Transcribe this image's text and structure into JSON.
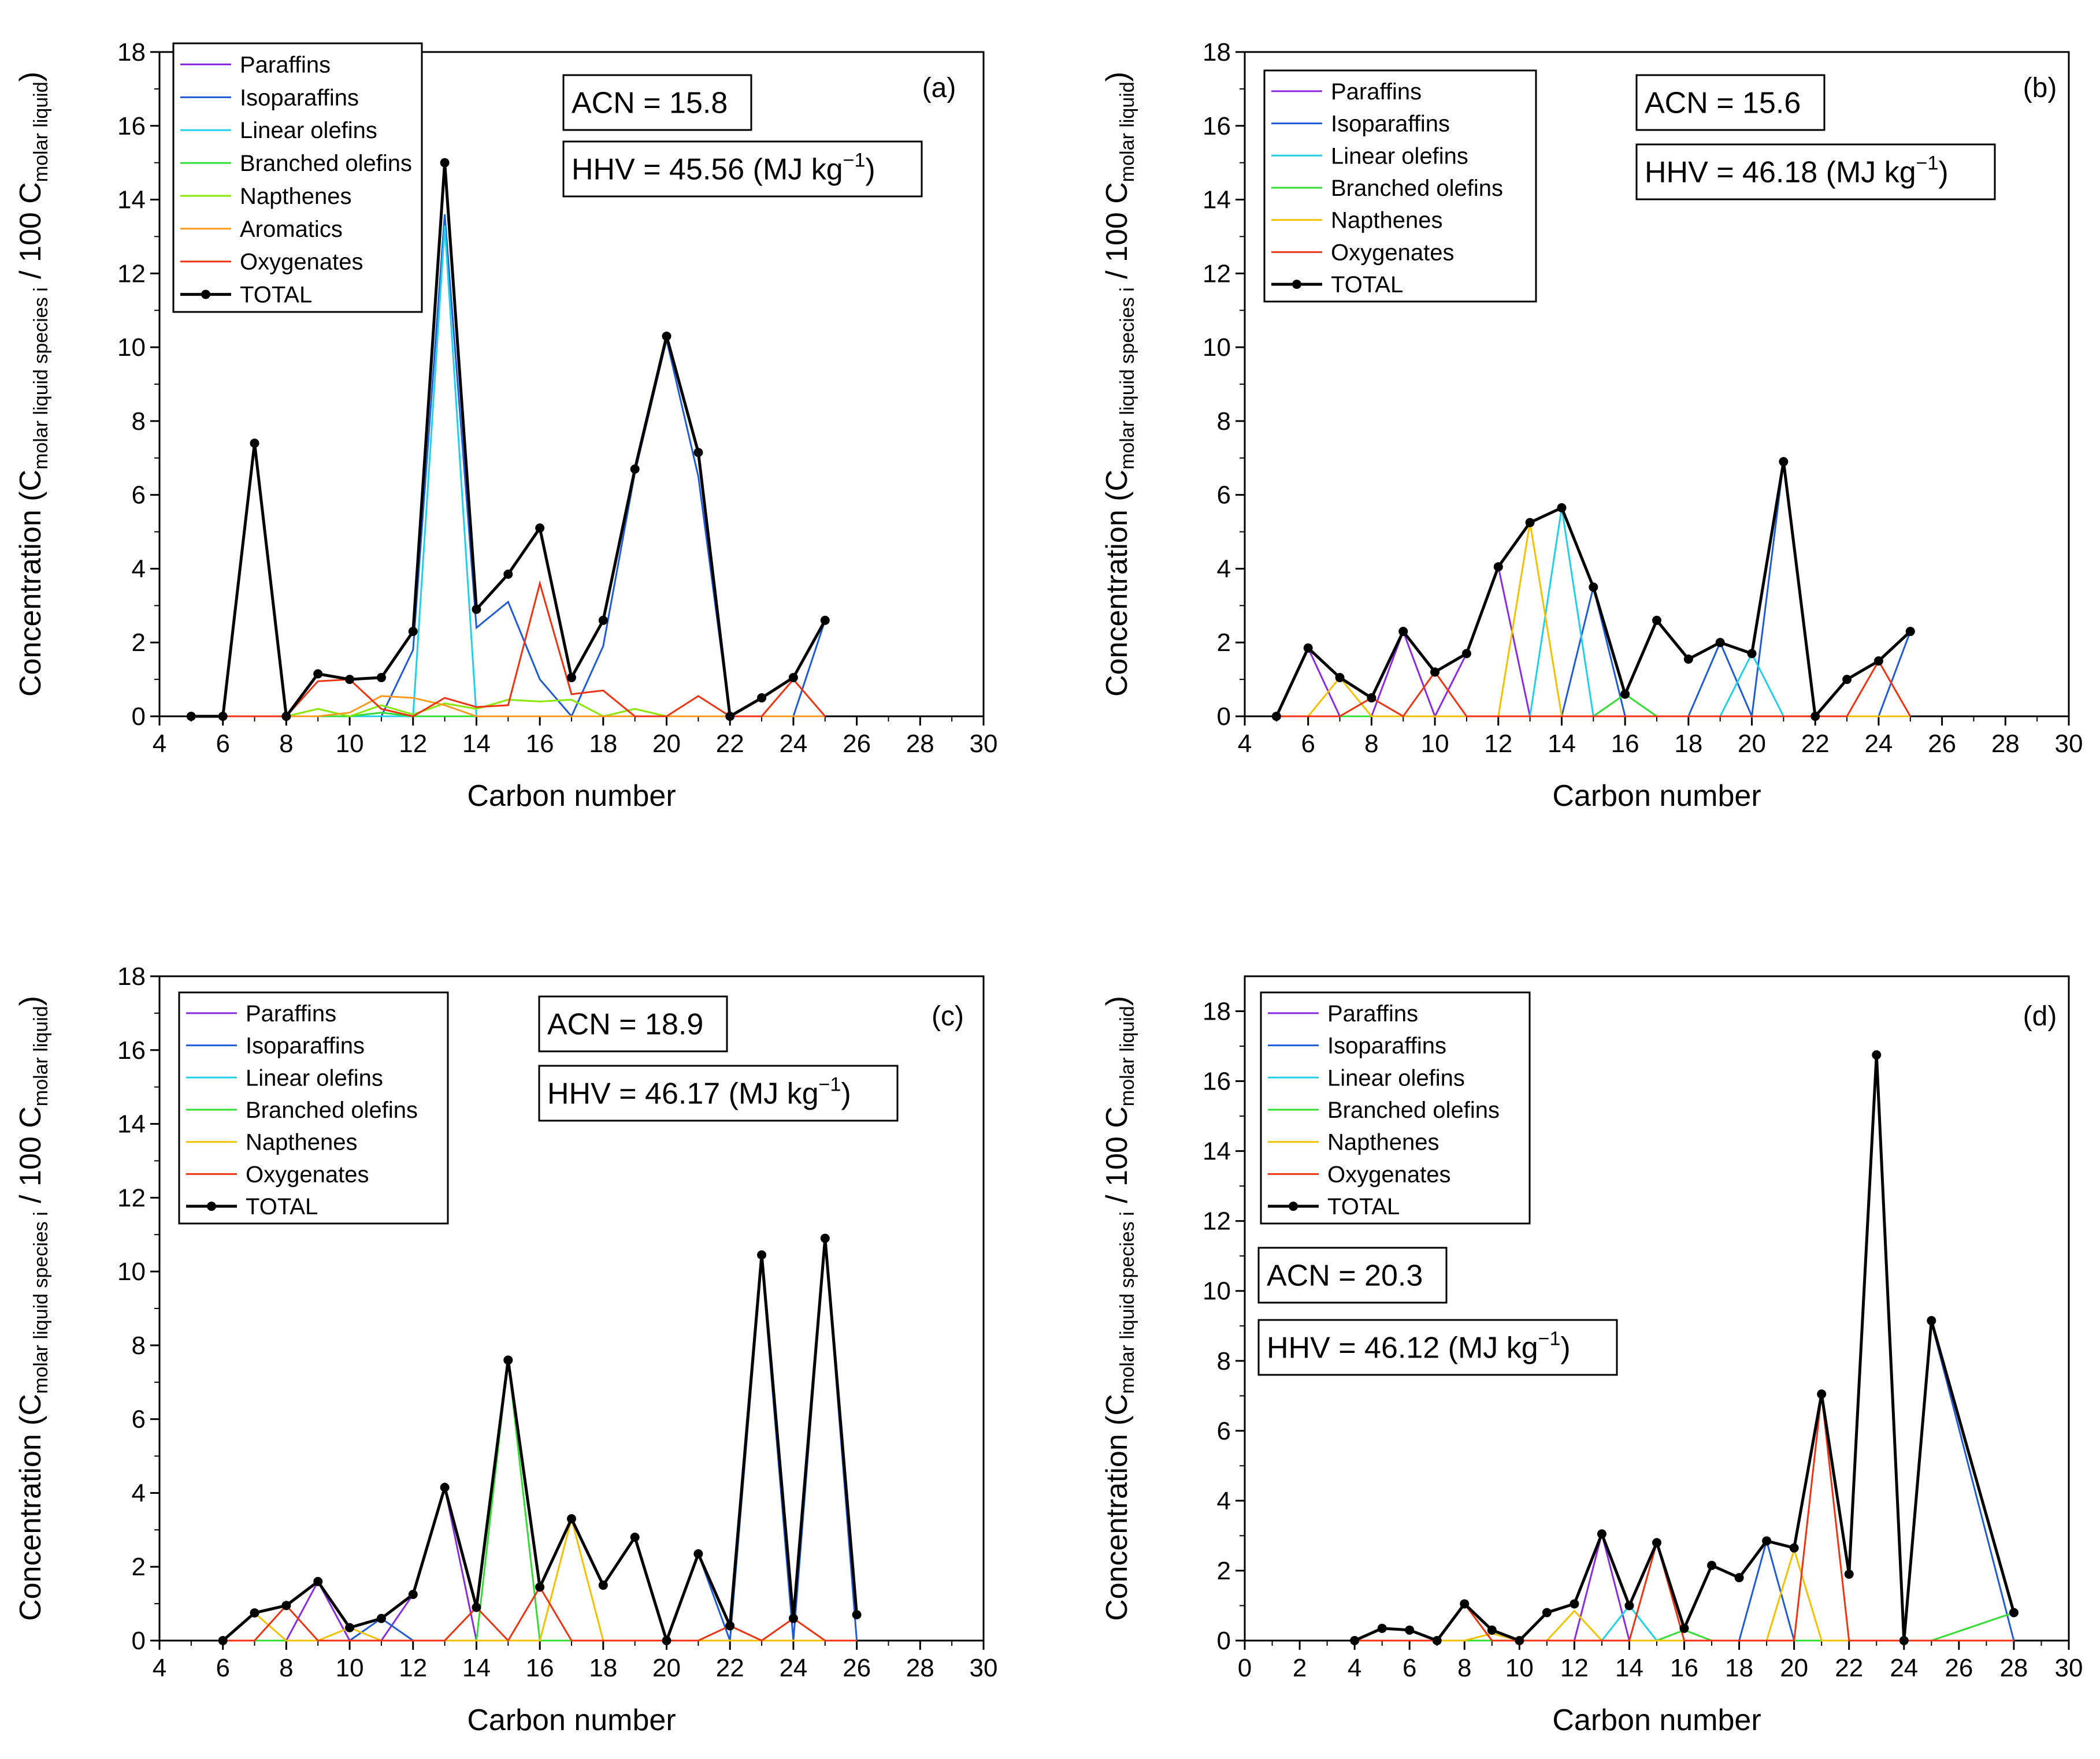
{
  "colors": {
    "Paraffins": "#8a2be2",
    "Isoparaffins": "#1f5bd6",
    "Linear olefins": "#1fd0e8",
    "Branched olefins": "#33dd33",
    "Napthenes": "#f2c200",
    "Napthenes_a": "#88e800",
    "Aromatics": "#ff9a1f",
    "Oxygenates": "#ee3311",
    "TOTAL": "#000000"
  },
  "chart_data": [
    {
      "type": "line",
      "panel": "(a)",
      "xlabel": "Carbon number",
      "ylabel_main": "Concentration (C",
      "ylabel_sub1": "molar liquid species i",
      "ylabel_mid": " / 100 C",
      "ylabel_sub2": "molar liquid",
      "ylabel_end": ")",
      "xlim": [
        4,
        30
      ],
      "ylim": [
        0,
        18
      ],
      "xticks": [
        4,
        6,
        8,
        10,
        12,
        14,
        16,
        18,
        20,
        22,
        24,
        26,
        28,
        30
      ],
      "yticks": [
        0,
        2,
        4,
        6,
        8,
        10,
        12,
        14,
        16,
        18
      ],
      "legend": [
        "Paraffins",
        "Isoparaffins",
        "Linear olefins",
        "Branched olefins",
        "Napthenes",
        "Aromatics",
        "Oxygenates",
        "TOTAL"
      ],
      "acn": "ACN = 15.8",
      "hhv_prefix": "HHV = 45.56 (MJ kg",
      "hhv_sup": "−1",
      "hhv_suffix": ")",
      "x": [
        5,
        6,
        7,
        8,
        9,
        10,
        11,
        12,
        13,
        14,
        15,
        16,
        17,
        18,
        19,
        20,
        21,
        22,
        23,
        24,
        25
      ],
      "series": [
        {
          "name": "Paraffins",
          "values": [
            0,
            0,
            0,
            0,
            0,
            0,
            0,
            0,
            0,
            0,
            0,
            0,
            0,
            0,
            0,
            0,
            0,
            0,
            0,
            0,
            0
          ]
        },
        {
          "name": "Isoparaffins",
          "values": [
            0,
            0,
            0,
            0,
            0,
            0,
            0,
            1.8,
            13.6,
            2.4,
            3.1,
            1.0,
            0,
            1.9,
            6.6,
            10.2,
            6.5,
            0,
            0,
            0,
            2.6
          ]
        },
        {
          "name": "Linear olefins",
          "values": [
            0,
            0,
            0,
            0,
            0,
            0,
            0,
            0,
            13.3,
            0,
            0,
            0,
            0,
            0,
            0,
            0,
            0,
            0,
            0,
            0,
            0
          ]
        },
        {
          "name": "Branched olefins",
          "values": [
            0,
            0,
            0,
            0,
            0,
            0,
            0.1,
            0,
            0,
            0,
            0,
            0,
            0,
            0,
            0,
            0,
            0,
            0,
            0,
            0,
            0
          ]
        },
        {
          "name": "Napthenes",
          "values": [
            0,
            0,
            0,
            0,
            0.2,
            0,
            0.3,
            0.05,
            0.35,
            0.2,
            0.45,
            0.4,
            0.45,
            0,
            0.2,
            0,
            0,
            0,
            0,
            0,
            0
          ]
        },
        {
          "name": "Aromatics",
          "values": [
            0,
            0,
            0,
            0,
            0,
            0.1,
            0.55,
            0.5,
            0.3,
            0,
            0,
            0,
            0,
            0,
            0,
            0,
            0,
            0,
            0,
            0,
            0
          ]
        },
        {
          "name": "Oxygenates",
          "values": [
            0,
            0,
            0,
            0,
            0.95,
            1.0,
            0.2,
            0,
            0.5,
            0.25,
            0.3,
            3.6,
            0.6,
            0.7,
            0,
            0,
            0.55,
            0,
            0,
            1.0,
            0
          ]
        },
        {
          "name": "TOTAL",
          "values": [
            0,
            0,
            7.4,
            0,
            1.15,
            1.0,
            1.05,
            2.3,
            15.0,
            2.9,
            3.85,
            5.1,
            1.05,
            2.6,
            6.7,
            10.3,
            7.15,
            0,
            0.5,
            1.05,
            2.6
          ]
        }
      ]
    },
    {
      "type": "line",
      "panel": "(b)",
      "xlabel": "Carbon number",
      "ylabel_main": "Concentration (C",
      "ylabel_sub1": "molar liquid species i",
      "ylabel_mid": " / 100 C",
      "ylabel_sub2": "molar liquid",
      "ylabel_end": ")",
      "xlim": [
        4,
        30
      ],
      "ylim": [
        0,
        18
      ],
      "xticks": [
        4,
        6,
        8,
        10,
        12,
        14,
        16,
        18,
        20,
        22,
        24,
        26,
        28,
        30
      ],
      "yticks": [
        0,
        2,
        4,
        6,
        8,
        10,
        12,
        14,
        16,
        18
      ],
      "legend": [
        "Paraffins",
        "Isoparaffins",
        "Linear olefins",
        "Branched olefins",
        "Napthenes",
        "Oxygenates",
        "TOTAL"
      ],
      "acn": "ACN = 15.6",
      "hhv_prefix": "HHV = 46.18 (MJ kg",
      "hhv_sup": "−1",
      "hhv_suffix": ")",
      "x": [
        5,
        6,
        7,
        8,
        9,
        10,
        11,
        12,
        13,
        14,
        15,
        16,
        17,
        18,
        19,
        20,
        21,
        22,
        23,
        24,
        25
      ],
      "series": [
        {
          "name": "Paraffins",
          "values": [
            0,
            1.85,
            0,
            0,
            2.3,
            0,
            1.7,
            4.05,
            0,
            0,
            0,
            0,
            0,
            0,
            0,
            0,
            0,
            0,
            0,
            0,
            0
          ]
        },
        {
          "name": "Isoparaffins",
          "values": [
            0,
            0,
            0,
            0,
            0,
            0,
            0,
            0,
            0,
            0,
            3.5,
            0,
            0,
            0,
            2.0,
            0,
            6.9,
            0,
            0,
            0,
            2.3
          ]
        },
        {
          "name": "Linear olefins",
          "values": [
            0,
            0,
            0,
            0,
            0,
            0,
            0,
            0,
            0,
            5.65,
            0,
            0,
            0,
            0,
            0,
            1.7,
            0,
            0,
            0,
            0,
            0
          ]
        },
        {
          "name": "Branched olefins",
          "values": [
            0,
            0,
            0,
            0,
            0,
            0,
            0,
            0,
            0,
            0,
            0,
            0.6,
            0,
            0,
            0,
            0,
            0,
            0,
            0,
            0,
            0
          ]
        },
        {
          "name": "Napthenes",
          "values": [
            0,
            0,
            1.05,
            0,
            0,
            0,
            0,
            0,
            5.25,
            0,
            0,
            0,
            0,
            0,
            0,
            0,
            0,
            0,
            0,
            0,
            0
          ]
        },
        {
          "name": "Oxygenates",
          "values": [
            0,
            0,
            0,
            0.5,
            0,
            1.2,
            0,
            0,
            0,
            0,
            0,
            0,
            0,
            0,
            0,
            0,
            0,
            0,
            0,
            1.5,
            0
          ]
        },
        {
          "name": "TOTAL",
          "values": [
            0,
            1.85,
            1.05,
            0.5,
            2.3,
            1.2,
            1.7,
            4.05,
            5.25,
            5.65,
            3.5,
            0.6,
            2.6,
            1.55,
            2.0,
            1.7,
            6.9,
            0,
            1.0,
            1.5,
            2.3
          ]
        }
      ]
    },
    {
      "type": "line",
      "panel": "(c)",
      "xlabel": "Carbon number",
      "ylabel_main": "Concentration (C",
      "ylabel_sub1": "molar liquid species i",
      "ylabel_mid": " / 100 C",
      "ylabel_sub2": "molar liquid",
      "ylabel_end": ")",
      "xlim": [
        4,
        30
      ],
      "ylim": [
        0,
        18
      ],
      "xticks": [
        4,
        6,
        8,
        10,
        12,
        14,
        16,
        18,
        20,
        22,
        24,
        26,
        28,
        30
      ],
      "yticks": [
        0,
        2,
        4,
        6,
        8,
        10,
        12,
        14,
        16,
        18
      ],
      "legend": [
        "Paraffins",
        "Isoparaffins",
        "Linear olefins",
        "Branched olefins",
        "Napthenes",
        "Oxygenates",
        "TOTAL"
      ],
      "acn": "ACN = 18.9",
      "hhv_prefix": "HHV = 46.17 (MJ kg",
      "hhv_sup": "−1",
      "hhv_suffix": ")",
      "x": [
        6,
        7,
        8,
        9,
        10,
        11,
        12,
        13,
        14,
        15,
        16,
        17,
        18,
        19,
        20,
        21,
        22,
        23,
        24,
        25,
        26
      ],
      "series": [
        {
          "name": "Paraffins",
          "values": [
            0,
            0,
            0,
            1.6,
            0,
            0,
            1.25,
            4.15,
            0,
            0,
            0,
            0,
            0,
            0,
            0,
            0,
            0,
            0,
            0,
            0,
            0
          ]
        },
        {
          "name": "Isoparaffins",
          "values": [
            0,
            0,
            0,
            0,
            0,
            0.6,
            0,
            0,
            0,
            0,
            0,
            0,
            0,
            0,
            0,
            2.35,
            0,
            10.3,
            0,
            10.9,
            0
          ]
        },
        {
          "name": "Linear olefins",
          "values": [
            0,
            0,
            0,
            0,
            0,
            0,
            0,
            0,
            0,
            0,
            0,
            0,
            0,
            0,
            0,
            0,
            0,
            0,
            0,
            0,
            0
          ]
        },
        {
          "name": "Branched olefins",
          "values": [
            0,
            0,
            0,
            0,
            0,
            0,
            0,
            0,
            0,
            7.6,
            0,
            0,
            0,
            0,
            0,
            0,
            0,
            0,
            0,
            0,
            0
          ]
        },
        {
          "name": "Napthenes",
          "values": [
            0,
            0.75,
            0,
            0,
            0.35,
            0,
            0,
            0,
            0,
            0,
            0,
            3.3,
            0,
            0,
            0,
            0,
            0,
            0,
            0,
            0,
            0
          ]
        },
        {
          "name": "Oxygenates",
          "values": [
            0,
            0,
            0.95,
            0,
            0,
            0,
            0,
            0,
            0.9,
            0,
            1.45,
            0,
            0,
            0,
            0,
            0,
            0.4,
            0,
            0.6,
            0,
            0
          ]
        },
        {
          "name": "TOTAL",
          "values": [
            0,
            0.75,
            0.95,
            1.6,
            0.35,
            0.6,
            1.25,
            4.15,
            0.9,
            7.6,
            1.45,
            3.3,
            1.5,
            2.8,
            0,
            2.35,
            0.4,
            10.45,
            0.6,
            10.9,
            0.7
          ]
        }
      ]
    },
    {
      "type": "line",
      "panel": "(d)",
      "xlabel": "Carbon number",
      "ylabel_main": "Concentration (C",
      "ylabel_sub1": "molar liquid species i",
      "ylabel_mid": " / 100 C",
      "ylabel_sub2": "molar liquid",
      "ylabel_end": ")",
      "xlim": [
        0,
        30
      ],
      "ylim": [
        0,
        19
      ],
      "xticks": [
        0,
        2,
        4,
        6,
        8,
        10,
        12,
        14,
        16,
        18,
        20,
        22,
        24,
        26,
        28,
        30
      ],
      "yticks": [
        0,
        2,
        4,
        6,
        8,
        10,
        12,
        14,
        16,
        18
      ],
      "legend": [
        "Paraffins",
        "Isoparaffins",
        "Linear olefins",
        "Branched olefins",
        "Napthenes",
        "Oxygenates",
        "TOTAL"
      ],
      "acn": "ACN = 20.3",
      "hhv_prefix": "HHV = 46.12 (MJ kg",
      "hhv_sup": "−1",
      "hhv_suffix": ")",
      "x": [
        4,
        5,
        6,
        7,
        8,
        9,
        10,
        11,
        12,
        13,
        14,
        15,
        16,
        17,
        18,
        19,
        20,
        21,
        22,
        23,
        24,
        25,
        28
      ],
      "series": [
        {
          "name": "Paraffins",
          "values": [
            0,
            0,
            0,
            0,
            0,
            0,
            0,
            0,
            0,
            3.05,
            0,
            0,
            0,
            0,
            0,
            0,
            0,
            0,
            0,
            0,
            0,
            0,
            0
          ]
        },
        {
          "name": "Isoparaffins",
          "values": [
            0,
            0,
            0,
            0,
            0,
            0,
            0,
            0,
            0,
            0,
            0,
            0,
            0,
            0,
            0,
            2.85,
            0,
            0,
            0,
            0,
            0,
            9.1,
            0
          ]
        },
        {
          "name": "Linear olefins",
          "values": [
            0,
            0,
            0,
            0,
            0,
            0,
            0,
            0,
            0,
            0,
            1.0,
            0,
            0,
            0,
            0,
            0,
            0,
            0,
            0,
            0,
            0,
            0,
            0
          ]
        },
        {
          "name": "Branched olefins",
          "values": [
            0,
            0,
            0,
            0,
            0,
            0,
            0,
            0,
            0,
            0,
            0,
            0,
            0.3,
            0,
            0,
            0,
            0,
            0,
            0,
            0,
            0,
            0,
            0.8
          ]
        },
        {
          "name": "Napthenes",
          "values": [
            0,
            0,
            0,
            0,
            0,
            0.2,
            0,
            0,
            0.85,
            0,
            0,
            0,
            0,
            0,
            0,
            0,
            2.6,
            0,
            0,
            0,
            0,
            0,
            0
          ]
        },
        {
          "name": "Oxygenates",
          "values": [
            0,
            0,
            0,
            0,
            1.05,
            0,
            0,
            0,
            0,
            0,
            0,
            2.8,
            0,
            0,
            0,
            0,
            0,
            7.05,
            0,
            0,
            0,
            0,
            0
          ]
        },
        {
          "name": "TOTAL",
          "values": [
            0,
            0.35,
            0.3,
            0,
            1.05,
            0.3,
            0,
            0.8,
            1.05,
            3.05,
            1.0,
            2.8,
            0.35,
            2.15,
            1.8,
            2.85,
            2.65,
            7.05,
            1.9,
            16.75,
            0,
            9.15,
            0.8
          ]
        }
      ]
    }
  ]
}
